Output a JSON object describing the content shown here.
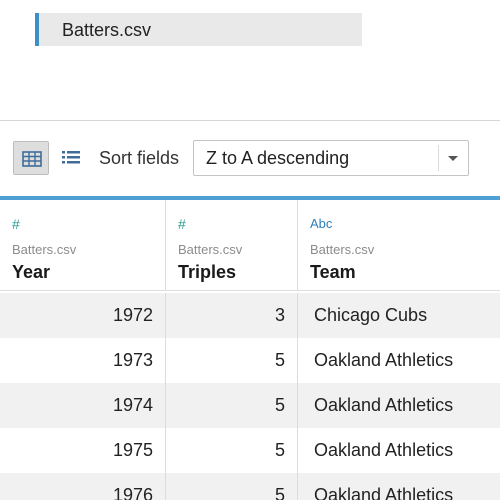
{
  "file": {
    "name": "Batters.csv"
  },
  "toolbar": {
    "sort_label": "Sort fields",
    "sort_value": "Z to A descending"
  },
  "columns": [
    {
      "type_icon": "#",
      "source": "Batters.csv",
      "name": "Year"
    },
    {
      "type_icon": "#",
      "source": "Batters.csv",
      "name": "Triples"
    },
    {
      "type_icon": "Abc",
      "source": "Batters.csv",
      "name": "Team"
    }
  ],
  "rows": [
    {
      "year": "1972",
      "triples": "3",
      "team": "Chicago Cubs"
    },
    {
      "year": "1973",
      "triples": "5",
      "team": "Oakland Athletics"
    },
    {
      "year": "1974",
      "triples": "5",
      "team": "Oakland Athletics"
    },
    {
      "year": "1975",
      "triples": "5",
      "team": "Oakland Athletics"
    },
    {
      "year": "1976",
      "triples": "5",
      "team": "Oakland Athletics"
    }
  ],
  "colors": {
    "accent": "#4e9fd3",
    "number_type": "#2c9c8f",
    "string_type": "#2e7fb8"
  }
}
